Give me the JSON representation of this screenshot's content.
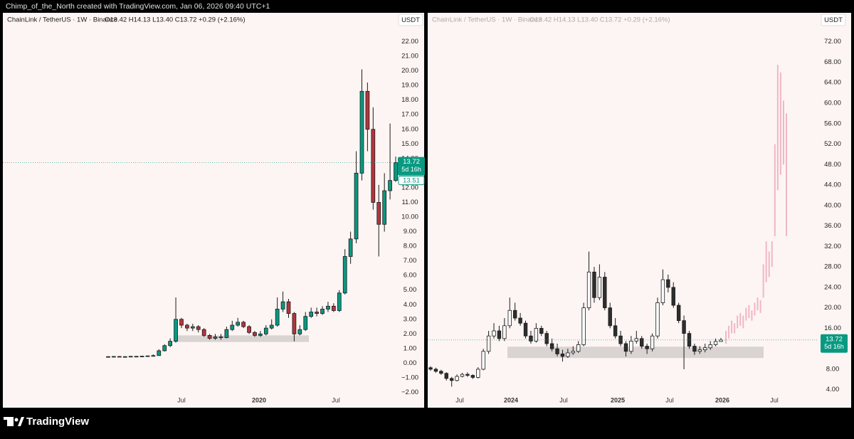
{
  "top_bar": "Chimp_of_the_North created with TradingView.com, Jan 06, 2026 09:40 UTC+1",
  "footer_brand": "TradingView",
  "chart_data": [
    {
      "type": "candlestick",
      "symbol": "ChainLink / TetherUS · 1W · Binance",
      "ohlc": "O13.42 H14.13 L13.40 C13.72 +0.29 (+2.16%)",
      "currency": "USDT",
      "countdown": "5d 16h",
      "mark_price": 13.51,
      "up_color": "#089981",
      "down_color": "#b2363e",
      "border_color": "#1b1b1b",
      "open": [
        0.44,
        0.45,
        0.46,
        0.44,
        0.45,
        0.47,
        0.46,
        0.48,
        0.5,
        0.52,
        0.85,
        1.2,
        1.5,
        3.0,
        2.6,
        2.4,
        2.5,
        2.3,
        1.9,
        1.7,
        1.8,
        1.75,
        2.3,
        2.6,
        2.8,
        2.5,
        2.1,
        1.9,
        2.0,
        2.4,
        2.6,
        3.7,
        4.2,
        3.4,
        2.0,
        2.3,
        3.2,
        3.5,
        3.4,
        3.7,
        3.9,
        3.6,
        4.8,
        7.3,
        8.5,
        13.0,
        18.6,
        16.0,
        11.0,
        9.5,
        11.8,
        12.5
      ],
      "high": [
        0.47,
        0.48,
        0.47,
        0.47,
        0.49,
        0.49,
        0.5,
        0.52,
        0.6,
        0.95,
        1.3,
        1.7,
        4.5,
        3.1,
        2.7,
        2.7,
        2.6,
        2.4,
        2.0,
        2.0,
        2.0,
        2.5,
        2.9,
        3.1,
        2.9,
        2.6,
        2.2,
        2.2,
        2.6,
        3.0,
        4.5,
        4.9,
        4.4,
        3.5,
        2.6,
        3.5,
        3.8,
        3.8,
        3.9,
        4.2,
        4.1,
        5.0,
        7.8,
        9.0,
        14.5,
        20.1,
        19.2,
        17.5,
        12.2,
        13.0,
        16.4,
        14.13
      ],
      "low": [
        0.43,
        0.44,
        0.43,
        0.43,
        0.44,
        0.45,
        0.45,
        0.47,
        0.49,
        0.5,
        0.8,
        1.1,
        1.4,
        2.4,
        2.2,
        2.2,
        2.1,
        1.8,
        1.6,
        1.6,
        1.6,
        1.7,
        2.2,
        2.5,
        2.4,
        2.0,
        1.8,
        1.8,
        1.9,
        2.3,
        2.5,
        3.5,
        3.1,
        1.5,
        1.9,
        2.2,
        3.1,
        3.2,
        3.3,
        3.5,
        3.5,
        3.5,
        4.7,
        6.8,
        8.2,
        12.5,
        14.5,
        10.5,
        7.3,
        9.0,
        11.2,
        12.4
      ],
      "close": [
        0.45,
        0.46,
        0.44,
        0.45,
        0.47,
        0.46,
        0.48,
        0.5,
        0.52,
        0.85,
        1.2,
        1.5,
        3.0,
        2.6,
        2.4,
        2.5,
        2.3,
        1.9,
        1.7,
        1.8,
        1.75,
        2.3,
        2.6,
        2.8,
        2.5,
        2.1,
        1.9,
        2.0,
        2.4,
        2.6,
        3.7,
        4.2,
        3.4,
        2.0,
        2.3,
        3.2,
        3.5,
        3.4,
        3.7,
        3.9,
        3.6,
        4.8,
        7.3,
        8.5,
        13.0,
        18.6,
        16.0,
        11.0,
        9.5,
        11.8,
        12.5,
        13.72
      ],
      "zone": {
        "low": 1.45,
        "high": 1.9,
        "color": "#d9d3d2"
      },
      "xticks": [
        "Jul",
        "2020",
        "Jul"
      ],
      "ylim": [
        -2.9,
        22.9
      ],
      "yticks": [
        {
          "value": -2,
          "label": "−2.00"
        },
        {
          "value": -1,
          "label": "−1.00"
        },
        {
          "value": 0,
          "label": "0.00"
        },
        {
          "value": 1,
          "label": "1.00"
        },
        {
          "value": 2,
          "label": "2.00"
        },
        {
          "value": 3,
          "label": "3.00"
        },
        {
          "value": 4,
          "label": "4.00"
        },
        {
          "value": 5,
          "label": "5.00"
        },
        {
          "value": 6,
          "label": "6.00"
        },
        {
          "value": 7,
          "label": "7.00"
        },
        {
          "value": 8,
          "label": "8.00"
        },
        {
          "value": 9,
          "label": "9.00"
        },
        {
          "value": 10,
          "label": "10.00"
        },
        {
          "value": 11,
          "label": "11.00"
        },
        {
          "value": 12,
          "label": "12.00"
        },
        {
          "value": 14,
          "label": "14.00"
        },
        {
          "value": 15,
          "label": "15.00"
        },
        {
          "value": 16,
          "label": "16.00"
        },
        {
          "value": 17,
          "label": "17.00"
        },
        {
          "value": 18,
          "label": "18.00"
        },
        {
          "value": 19,
          "label": "19.00"
        },
        {
          "value": 20,
          "label": "20.00"
        },
        {
          "value": 21,
          "label": "21.00"
        },
        {
          "value": 22,
          "label": "22.00"
        }
      ]
    },
    {
      "type": "candlestick",
      "symbol": "ChainLink / TetherUS · 1W · Binance",
      "ohlc": "O13.42 H14.13 L13.40 C13.72 +0.29 (+2.16%)",
      "currency": "USDT",
      "countdown": "5d 16h",
      "up_color": "#ffffff",
      "down_color": "#2e2e2e",
      "border_color": "#1b1b1b",
      "open": [
        8.3,
        8.0,
        7.6,
        7.2,
        6.2,
        5.8,
        6.6,
        7.0,
        6.8,
        6.4,
        8.0,
        11.5,
        14.5,
        15.5,
        14.0,
        16.5,
        19.5,
        18.0,
        17.0,
        14.5,
        13.5,
        16.0,
        15.0,
        13.0,
        12.0,
        11.0,
        10.5,
        11.2,
        11.5,
        12.8,
        20.0,
        27.0,
        22.0,
        26.0,
        20.0,
        16.5,
        14.5,
        13.0,
        11.5,
        13.5,
        14.0,
        12.5,
        12.0,
        14.5,
        21.0,
        25.5,
        24.0,
        20.5,
        17.5,
        15.0,
        12.5,
        11.5,
        11.8,
        12.2,
        12.8,
        13.42
      ],
      "high": [
        8.6,
        8.3,
        7.9,
        7.4,
        6.5,
        7.0,
        7.3,
        7.4,
        7.0,
        8.4,
        12.0,
        15.5,
        17.0,
        16.5,
        18.0,
        22.0,
        21.0,
        19.0,
        17.5,
        15.5,
        17.0,
        16.5,
        15.5,
        14.0,
        13.0,
        11.8,
        12.0,
        12.5,
        13.5,
        21.0,
        31.0,
        28.0,
        28.5,
        27.0,
        21.0,
        18.0,
        15.5,
        13.5,
        14.5,
        15.5,
        14.5,
        13.0,
        15.0,
        22.0,
        27.5,
        26.5,
        25.0,
        21.0,
        18.5,
        15.5,
        13.0,
        12.5,
        13.0,
        13.5,
        14.0,
        14.13
      ],
      "low": [
        7.7,
        7.3,
        6.9,
        5.8,
        4.6,
        5.6,
        6.4,
        6.5,
        6.1,
        6.2,
        7.8,
        11.0,
        14.0,
        13.5,
        13.5,
        16.0,
        17.5,
        16.5,
        14.0,
        13.0,
        13.2,
        14.5,
        12.5,
        11.5,
        10.5,
        9.5,
        10.2,
        10.8,
        11.2,
        12.5,
        19.5,
        21.0,
        21.5,
        19.5,
        16.0,
        14.0,
        12.5,
        10.5,
        11.0,
        13.0,
        12.0,
        11.0,
        11.5,
        14.0,
        20.5,
        23.0,
        20.0,
        17.0,
        8.0,
        12.0,
        10.8,
        11.0,
        11.3,
        11.8,
        12.5,
        13.4
      ],
      "close": [
        8.0,
        7.6,
        7.2,
        6.2,
        5.8,
        6.6,
        7.0,
        6.8,
        6.4,
        8.0,
        11.5,
        14.5,
        15.5,
        14.0,
        16.5,
        19.5,
        18.0,
        17.0,
        14.5,
        13.5,
        16.0,
        15.0,
        13.0,
        12.0,
        11.0,
        10.5,
        11.2,
        11.5,
        12.8,
        20.0,
        27.0,
        22.0,
        26.0,
        20.0,
        16.5,
        14.5,
        13.0,
        11.5,
        13.5,
        14.0,
        12.5,
        12.0,
        14.5,
        21.0,
        25.5,
        24.0,
        20.5,
        17.5,
        15.0,
        12.5,
        11.5,
        11.8,
        12.2,
        12.8,
        13.43,
        13.72
      ],
      "projection": {
        "color": "#f0b7c4",
        "high": [
          15.5,
          16.5,
          17.5,
          17.0,
          18.5,
          19.0,
          18.5,
          20.0,
          20.5,
          19.5,
          21.0,
          22.0,
          21.5,
          28.5,
          33.0,
          31.0,
          33.0,
          52.0,
          67.5,
          66.0,
          60.5,
          58.0
        ],
        "low": [
          13.0,
          14.0,
          15.0,
          15.0,
          16.0,
          16.5,
          16.0,
          17.5,
          18.0,
          17.5,
          18.5,
          19.5,
          19.0,
          22.0,
          25.0,
          26.0,
          28.0,
          34.0,
          43.0,
          46.0,
          48.0,
          34.0
        ]
      },
      "zone": {
        "low": 10.2,
        "high": 12.4,
        "color": "#d9d3d2"
      },
      "xticks": [
        "Jul",
        "2024",
        "Jul",
        "2025",
        "Jul",
        "2026",
        "Jul"
      ],
      "ylim": [
        0.9,
        74.6
      ],
      "yticks": [
        {
          "value": 4,
          "label": "4.00"
        },
        {
          "value": 8,
          "label": "8.00"
        },
        {
          "value": 16,
          "label": "16.00"
        },
        {
          "value": 20,
          "label": "20.00"
        },
        {
          "value": 24,
          "label": "24.00"
        },
        {
          "value": 28,
          "label": "28.00"
        },
        {
          "value": 32,
          "label": "32.00"
        },
        {
          "value": 36,
          "label": "36.00"
        },
        {
          "value": 40,
          "label": "40.00"
        },
        {
          "value": 44,
          "label": "44.00"
        },
        {
          "value": 48,
          "label": "48.00"
        },
        {
          "value": 52,
          "label": "52.00"
        },
        {
          "value": 56,
          "label": "56.00"
        },
        {
          "value": 60,
          "label": "60.00"
        },
        {
          "value": 64,
          "label": "64.00"
        },
        {
          "value": 68,
          "label": "68.00"
        },
        {
          "value": 72,
          "label": "72.00"
        }
      ]
    }
  ]
}
